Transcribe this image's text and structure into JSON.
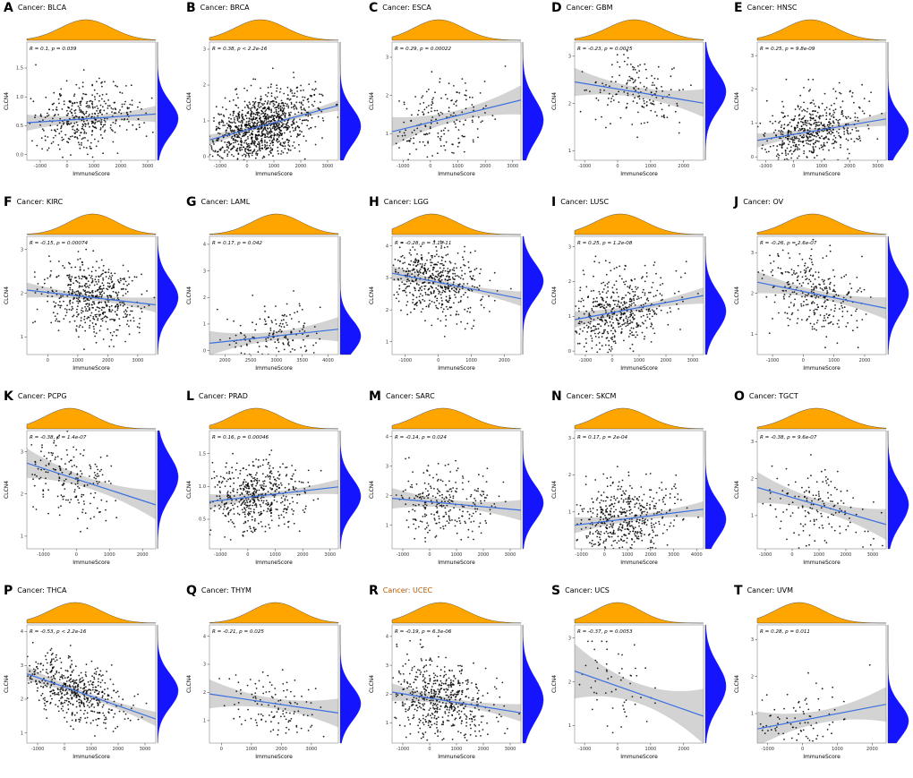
{
  "page": {
    "background": "#ffffff"
  },
  "chart_data": {
    "type": "scatter",
    "layout": {
      "rows": 4,
      "cols": 5
    },
    "xlabel": "ImmuneScore",
    "ylabel": "CLCN4",
    "cancer_label_prefix": "Cancer: ",
    "legend": "none",
    "grid": "off",
    "colors": {
      "top_density": "#FFA500",
      "side_density": "#1414FF",
      "trend": "#3B6FE0",
      "ci": "#808080",
      "points": "#000000",
      "plot_border": "#888888"
    },
    "panels": [
      {
        "letter": "A",
        "cancer": "BLCA",
        "stats": "R = 0.1, p = 0.039",
        "r": 0.1,
        "p": "0.039",
        "n": 400,
        "xlim": [
          -1500,
          3300
        ],
        "ylim": [
          -0.1,
          1.95
        ],
        "xticks": [
          "-1000",
          "0",
          "1000",
          "2000",
          "3000"
        ],
        "yticks": [
          "0.0",
          "0.5",
          "1.0",
          "1.5"
        ],
        "x_mean": 700,
        "x_sd": 950,
        "y_mean": 0.62,
        "y_sd": 0.3
      },
      {
        "letter": "B",
        "cancer": "BRCA",
        "stats": "R = 0.38, p < 2.2e-16",
        "r": 0.38,
        "p": "< 2.2e-16",
        "n": 1050,
        "xlim": [
          -1400,
          3400
        ],
        "ylim": [
          -0.1,
          3.2
        ],
        "xticks": [
          "-1000",
          "0",
          "1000",
          "2000",
          "3000"
        ],
        "yticks": [
          "0",
          "1",
          "2",
          "3"
        ],
        "x_mean": 500,
        "x_sd": 950,
        "y_mean": 0.85,
        "y_sd": 0.5
      },
      {
        "letter": "C",
        "cancer": "ESCA",
        "stats": "R = 0.29, p = 0.00022",
        "r": 0.29,
        "p": "0.00022",
        "n": 180,
        "xlim": [
          -1400,
          3300
        ],
        "ylim": [
          0.3,
          3.4
        ],
        "xticks": [
          "-1000",
          "0",
          "1000",
          "2000",
          "3000"
        ],
        "yticks": [
          "1",
          "2",
          "3"
        ],
        "x_mean": 300,
        "x_sd": 900,
        "y_mean": 1.35,
        "y_sd": 0.55
      },
      {
        "letter": "D",
        "cancer": "GBM",
        "stats": "R = -0.23, p = 0.0025",
        "r": -0.23,
        "p": "0.0025",
        "n": 160,
        "xlim": [
          -1300,
          2600
        ],
        "ylim": [
          0.8,
          3.3
        ],
        "xticks": [
          "-1000",
          "0",
          "1000",
          "2000"
        ],
        "yticks": [
          "1",
          "2",
          "3"
        ],
        "x_mean": 500,
        "x_sd": 800,
        "y_mean": 2.25,
        "y_sd": 0.4
      },
      {
        "letter": "E",
        "cancer": "HNSC",
        "stats": "R = 0.25, p = 9.8e-09",
        "r": 0.25,
        "p": "9.8e-09",
        "n": 510,
        "xlim": [
          -1300,
          3300
        ],
        "ylim": [
          -0.1,
          3.4
        ],
        "xticks": [
          "-1000",
          "0",
          "1000",
          "2000",
          "3000"
        ],
        "yticks": [
          "0",
          "1",
          "2",
          "3"
        ],
        "x_mean": 600,
        "x_sd": 900,
        "y_mean": 0.75,
        "y_sd": 0.5
      },
      {
        "letter": "F",
        "cancer": "KIRC",
        "stats": "R = -0.15, p = 0.00074",
        "r": -0.15,
        "p": "0.00074",
        "n": 530,
        "xlim": [
          -700,
          3600
        ],
        "ylim": [
          0.6,
          3.3
        ],
        "xticks": [
          "0",
          "1000",
          "2000",
          "3000"
        ],
        "yticks": [
          "1",
          "2",
          "3"
        ],
        "x_mean": 1500,
        "x_sd": 800,
        "y_mean": 1.9,
        "y_sd": 0.42
      },
      {
        "letter": "G",
        "cancer": "LAML",
        "stats": "R = 0.17, p = 0.042",
        "r": 0.17,
        "p": "0.042",
        "n": 150,
        "xlim": [
          1700,
          4200
        ],
        "ylim": [
          -0.15,
          4.3
        ],
        "xticks": [
          "2000",
          "2500",
          "3000",
          "3500",
          "4000"
        ],
        "yticks": [
          "0",
          "1",
          "2",
          "3",
          "4"
        ],
        "x_mean": 3000,
        "x_sd": 480,
        "y_mean": 0.55,
        "y_sd": 0.6
      },
      {
        "letter": "H",
        "cancer": "LGG",
        "stats": "R = -0.28, p = 3.1e-11",
        "r": -0.28,
        "p": "3.1e-11",
        "n": 510,
        "xlim": [
          -1400,
          2500
        ],
        "ylim": [
          0.6,
          4.3
        ],
        "xticks": [
          "-1000",
          "0",
          "1000",
          "2000"
        ],
        "yticks": [
          "1",
          "2",
          "3",
          "4"
        ],
        "x_mean": -200,
        "x_sd": 750,
        "y_mean": 2.9,
        "y_sd": 0.55
      },
      {
        "letter": "I",
        "cancer": "LUSC",
        "stats": "R = 0.25, p = 1.2e-08",
        "r": 0.25,
        "p": "1.2e-08",
        "n": 490,
        "xlim": [
          -1400,
          3400
        ],
        "ylim": [
          -0.1,
          3.3
        ],
        "xticks": [
          "-1000",
          "0",
          "1000",
          "2000",
          "3000"
        ],
        "yticks": [
          "0",
          "1",
          "2",
          "3"
        ],
        "x_mean": 300,
        "x_sd": 950,
        "y_mean": 1.15,
        "y_sd": 0.55
      },
      {
        "letter": "J",
        "cancer": "OV",
        "stats": "R = -0.26, p = 2.6e-07",
        "r": -0.26,
        "p": "2.6e-07",
        "n": 300,
        "xlim": [
          -1500,
          2700
        ],
        "ylim": [
          0.5,
          3.4
        ],
        "xticks": [
          "-1000",
          "0",
          "1000",
          "2000"
        ],
        "yticks": [
          "1",
          "2",
          "3"
        ],
        "x_mean": 300,
        "x_sd": 850,
        "y_mean": 2.0,
        "y_sd": 0.5
      },
      {
        "letter": "K",
        "cancer": "PCPG",
        "stats": "R = -0.38, p = 1.4e-07",
        "r": -0.38,
        "p": "1.4e-07",
        "n": 180,
        "xlim": [
          -1500,
          2400
        ],
        "ylim": [
          0.7,
          3.5
        ],
        "xticks": [
          "-1000",
          "0",
          "1000",
          "2000"
        ],
        "yticks": [
          "1",
          "2",
          "3"
        ],
        "x_mean": -200,
        "x_sd": 750,
        "y_mean": 2.4,
        "y_sd": 0.5
      },
      {
        "letter": "L",
        "cancer": "PRAD",
        "stats": "R = 0.16, p = 0.00046",
        "r": 0.16,
        "p": "0.00046",
        "n": 500,
        "xlim": [
          -1400,
          3300
        ],
        "ylim": [
          0.05,
          1.85
        ],
        "xticks": [
          "-1000",
          "0",
          "1000",
          "2000",
          "3000"
        ],
        "yticks": [
          "0.5",
          "1.0",
          "1.5"
        ],
        "x_mean": 300,
        "x_sd": 900,
        "y_mean": 0.85,
        "y_sd": 0.27
      },
      {
        "letter": "M",
        "cancer": "SARC",
        "stats": "R = -0.14, p = 0.024",
        "r": -0.14,
        "p": "0.024",
        "n": 260,
        "xlim": [
          -1400,
          3400
        ],
        "ylim": [
          0.2,
          4.2
        ],
        "xticks": [
          "-1000",
          "0",
          "1000",
          "2000",
          "3000"
        ],
        "yticks": [
          "1",
          "2",
          "3",
          "4"
        ],
        "x_mean": 500,
        "x_sd": 1000,
        "y_mean": 1.75,
        "y_sd": 0.6
      },
      {
        "letter": "N",
        "cancer": "SKCM",
        "stats": "R = 0.17, p = 2e-04",
        "r": 0.17,
        "p": "2e-04",
        "n": 470,
        "xlim": [
          -1300,
          4300
        ],
        "ylim": [
          0.0,
          3.2
        ],
        "xticks": [
          "-1000",
          "0",
          "1000",
          "2000",
          "3000",
          "4000"
        ],
        "yticks": [
          "1",
          "2",
          "3"
        ],
        "x_mean": 800,
        "x_sd": 1100,
        "y_mean": 0.8,
        "y_sd": 0.5
      },
      {
        "letter": "O",
        "cancer": "TGCT",
        "stats": "R = -0.38, p = 9.6e-07",
        "r": -0.38,
        "p": "9.6e-07",
        "n": 150,
        "xlim": [
          -1300,
          3500
        ],
        "ylim": [
          0.1,
          3.3
        ],
        "xticks": [
          "-1000",
          "0",
          "1000",
          "2000",
          "3000"
        ],
        "yticks": [
          "1",
          "2",
          "3"
        ],
        "x_mean": 900,
        "x_sd": 1000,
        "y_mean": 1.3,
        "y_sd": 0.55
      },
      {
        "letter": "P",
        "cancer": "THCA",
        "stats": "R = -0.53, p < 2.2e-16",
        "r": -0.53,
        "p": "< 2.2e-16",
        "n": 500,
        "xlim": [
          -1400,
          3400
        ],
        "ylim": [
          0.7,
          4.2
        ],
        "xticks": [
          "-1000",
          "0",
          "1000",
          "2000",
          "3000"
        ],
        "yticks": [
          "1",
          "2",
          "3",
          "4"
        ],
        "x_mean": 400,
        "x_sd": 950,
        "y_mean": 2.25,
        "y_sd": 0.5
      },
      {
        "letter": "Q",
        "cancer": "THYM",
        "stats": "R = -0.21, p = 0.025",
        "r": -0.21,
        "p": "0.025",
        "n": 120,
        "xlim": [
          -400,
          3900
        ],
        "ylim": [
          0.2,
          4.4
        ],
        "xticks": [
          "0",
          "1000",
          "2000",
          "3000"
        ],
        "yticks": [
          "1",
          "2",
          "3",
          "4"
        ],
        "x_mean": 1800,
        "x_sd": 800,
        "y_mean": 1.6,
        "y_sd": 0.6
      },
      {
        "letter": "R",
        "cancer": "UCEC",
        "stats": "R = -0.19, p = 6.3e-06",
        "r": -0.19,
        "p": "6.3e-06",
        "n": 540,
        "xlim": [
          -1400,
          3400
        ],
        "ylim": [
          0.3,
          4.4
        ],
        "xticks": [
          "-1000",
          "0",
          "1000",
          "2000",
          "3000"
        ],
        "yticks": [
          "1",
          "2",
          "3",
          "4"
        ],
        "x_mean": 400,
        "x_sd": 950,
        "y_mean": 1.8,
        "y_sd": 0.75,
        "label_color": "#b35900"
      },
      {
        "letter": "S",
        "cancer": "UCS",
        "stats": "R = -0.37, p = 0.0053",
        "r": -0.37,
        "p": "0.0053",
        "n": 56,
        "xlim": [
          -1300,
          2600
        ],
        "ylim": [
          0.6,
          3.3
        ],
        "xticks": [
          "-1000",
          "0",
          "1000",
          "2000"
        ],
        "yticks": [
          "1",
          "2",
          "3"
        ],
        "x_mean": 0,
        "x_sd": 700,
        "y_mean": 1.9,
        "y_sd": 0.5
      },
      {
        "letter": "T",
        "cancer": "UVM",
        "stats": "R = 0.28, p = 0.011",
        "r": 0.28,
        "p": "0.011",
        "n": 80,
        "xlim": [
          -1300,
          2400
        ],
        "ylim": [
          0.2,
          3.4
        ],
        "xticks": [
          "-1000",
          "0",
          "1000",
          "2000"
        ],
        "yticks": [
          "1",
          "2",
          "3"
        ],
        "x_mean": -100,
        "x_sd": 700,
        "y_mean": 0.8,
        "y_sd": 0.45
      }
    ]
  }
}
